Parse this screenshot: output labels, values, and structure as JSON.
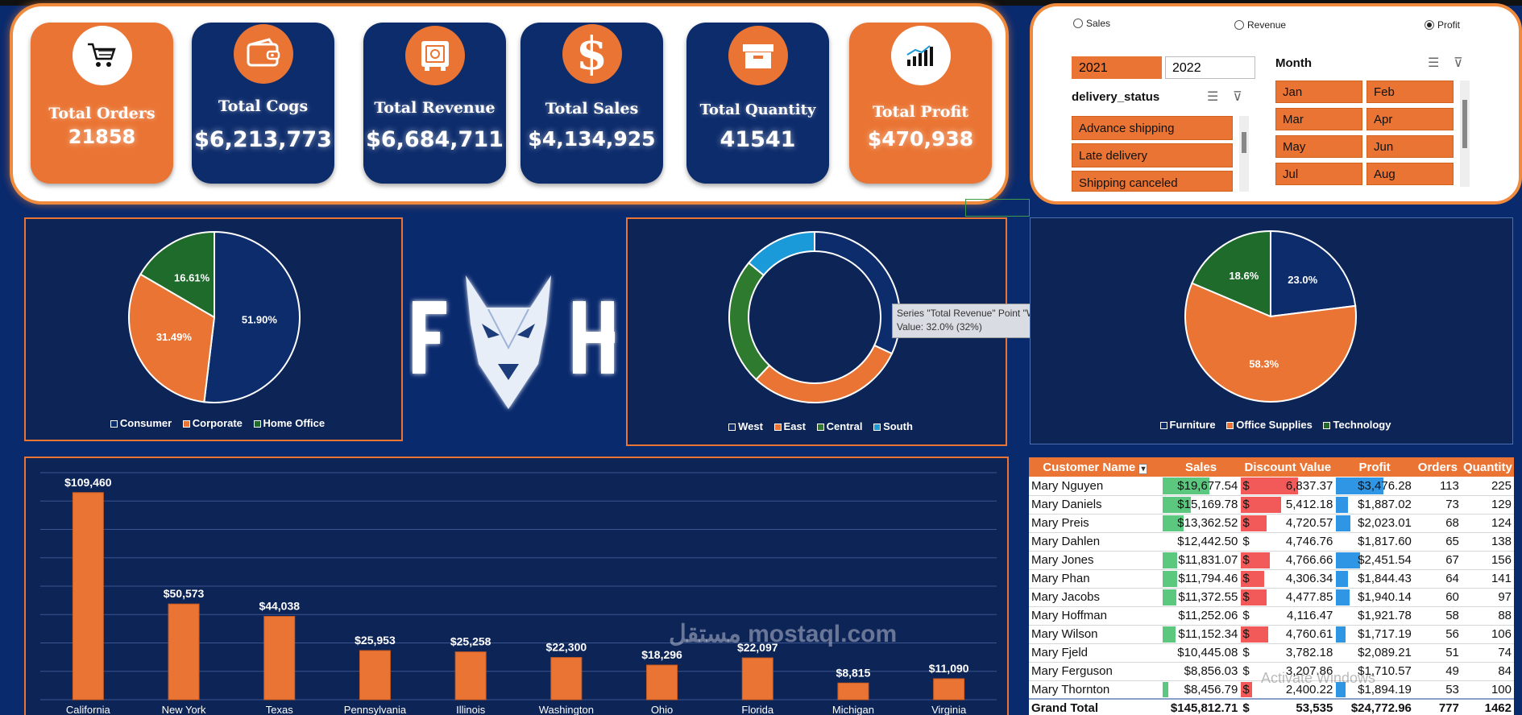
{
  "kpis": [
    {
      "title": "Total Orders",
      "value": "21858",
      "icon": "cart-icon"
    },
    {
      "title": "Total Cogs",
      "value": "$6,213,773",
      "icon": "wallet-icon"
    },
    {
      "title": "Total Revenue",
      "value": "$6,684,711",
      "icon": "safe-icon"
    },
    {
      "title": "Total Sales",
      "value": "$4,134,925",
      "icon": "dollar-icon"
    },
    {
      "title": "Total Quantity",
      "value": "41541",
      "icon": "box-icon"
    },
    {
      "title": "Total Profit",
      "value": "$470,938",
      "icon": "bar-chart-icon"
    }
  ],
  "measure_options": {
    "sales": "Sales",
    "revenue": "Revenue",
    "profit": "Profit",
    "selected": "Profit"
  },
  "years": [
    "2021",
    "2022"
  ],
  "delivery": {
    "title": "delivery_status",
    "items": [
      "Advance shipping",
      "Late delivery",
      "Shipping canceled"
    ]
  },
  "month": {
    "title": "Month",
    "items": [
      "Jan",
      "Feb",
      "Mar",
      "Apr",
      "May",
      "Jun",
      "Jul",
      "Aug"
    ]
  },
  "tooltip": {
    "line1": "Series \"Total Revenue\" Point \"West\"",
    "line2": "Value: 32.0% (32%)"
  },
  "logo_text": "FOX",
  "colors": {
    "orange": "#ea7433",
    "navy": "#0d2456",
    "green": "#1e6b2c",
    "sky": "#1a9ad8",
    "darknavy": "#0a2a6e"
  },
  "chart_data": [
    {
      "type": "pie",
      "categories": [
        "Consumer",
        "Corporate",
        "Home Office"
      ],
      "values": [
        51.9,
        31.49,
        16.61
      ],
      "labels": [
        "51.90%",
        "31.49%",
        "16.61%"
      ],
      "colors": [
        "#0d2c6c",
        "#ea7433",
        "#1e6b2c"
      ],
      "legend": "bottom"
    },
    {
      "type": "donut",
      "categories": [
        "West",
        "East",
        "Central",
        "South"
      ],
      "values": [
        32.0,
        30.0,
        24.0,
        14.0
      ],
      "colors": [
        "#0d2c6c",
        "#ea7433",
        "#2e7a2e",
        "#1a9ad8"
      ],
      "legend": "bottom"
    },
    {
      "type": "pie",
      "categories": [
        "Furniture",
        "Office Supplies",
        "Technology"
      ],
      "values": [
        23.0,
        58.3,
        18.6
      ],
      "labels": [
        "23.0%",
        "58.3%",
        "18.6%"
      ],
      "colors": [
        "#0d2c6c",
        "#ea7433",
        "#1e6b2c"
      ],
      "legend": "bottom"
    },
    {
      "type": "bar",
      "categories": [
        "California",
        "New York",
        "Texas",
        "Pennsylvania",
        "Illinois",
        "Washington",
        "Ohio",
        "Florida",
        "Michigan",
        "Virginia"
      ],
      "values": [
        109460,
        50573,
        44038,
        25953,
        25258,
        22300,
        18296,
        22097,
        8815,
        11090
      ],
      "labels": [
        "$109,460",
        "$50,573",
        "$44,038",
        "$25,953",
        "$25,258",
        "$22,300",
        "$18,296",
        "$22,097",
        "$8,815",
        "$11,090"
      ],
      "ylim": [
        0,
        120000
      ],
      "grid": true
    }
  ],
  "table": {
    "headers": [
      "Customer Name",
      "Sales",
      "Discount Value",
      "Profit",
      "Orders",
      "Quantity"
    ],
    "rows": [
      {
        "name": "Mary Nguyen",
        "sales": "$19,677.54",
        "sales_bar": 1.0,
        "disc": "6,837.37",
        "disc_bar": 1.0,
        "profit": "$3,476.28",
        "profit_bar": 1.0,
        "orders": "113",
        "qty": "225"
      },
      {
        "name": "Mary Daniels",
        "sales": "$15,169.78",
        "sales_bar": 0.6,
        "disc": "5,412.18",
        "disc_bar": 0.7,
        "profit": "$1,887.02",
        "profit_bar": 0.25,
        "orders": "73",
        "qty": "129"
      },
      {
        "name": "Mary Preis",
        "sales": "$13,362.52",
        "sales_bar": 0.45,
        "disc": "4,720.57",
        "disc_bar": 0.45,
        "profit": "$2,023.01",
        "profit_bar": 0.3,
        "orders": "68",
        "qty": "124"
      },
      {
        "name": "Mary Dahlen",
        "sales": "$12,442.50",
        "sales_bar": 0,
        "disc": "4,746.76",
        "disc_bar": 0,
        "profit": "$1,817.60",
        "profit_bar": 0,
        "orders": "65",
        "qty": "138"
      },
      {
        "name": "Mary Jones",
        "sales": "$11,831.07",
        "sales_bar": 0.32,
        "disc": "4,766.66",
        "disc_bar": 0.5,
        "profit": "$2,451.54",
        "profit_bar": 0.5,
        "orders": "67",
        "qty": "156"
      },
      {
        "name": "Mary Phan",
        "sales": "$11,794.46",
        "sales_bar": 0.32,
        "disc": "4,306.34",
        "disc_bar": 0.4,
        "profit": "$1,844.43",
        "profit_bar": 0.25,
        "orders": "64",
        "qty": "141"
      },
      {
        "name": "Mary Jacobs",
        "sales": "$11,372.55",
        "sales_bar": 0.3,
        "disc": "4,477.85",
        "disc_bar": 0.45,
        "profit": "$1,940.14",
        "profit_bar": 0.28,
        "orders": "60",
        "qty": "97"
      },
      {
        "name": "Mary Hoffman",
        "sales": "$11,252.06",
        "sales_bar": 0,
        "disc": "4,116.47",
        "disc_bar": 0,
        "profit": "$1,921.78",
        "profit_bar": 0,
        "orders": "58",
        "qty": "88"
      },
      {
        "name": "Mary Wilson",
        "sales": "$11,152.34",
        "sales_bar": 0.27,
        "disc": "4,760.61",
        "disc_bar": 0.47,
        "profit": "$1,717.19",
        "profit_bar": 0.2,
        "orders": "56",
        "qty": "106"
      },
      {
        "name": "Mary Fjeld",
        "sales": "$10,445.08",
        "sales_bar": 0,
        "disc": "3,782.18",
        "disc_bar": 0,
        "profit": "$2,089.21",
        "profit_bar": 0,
        "orders": "51",
        "qty": "74"
      },
      {
        "name": "Mary Ferguson",
        "sales": "$8,856.03",
        "sales_bar": 0,
        "disc": "3,207.86",
        "disc_bar": 0,
        "profit": "$1,710.57",
        "profit_bar": 0,
        "orders": "49",
        "qty": "84"
      },
      {
        "name": "Mary Thornton",
        "sales": "$8,456.79",
        "sales_bar": 0.12,
        "disc": "2,400.22",
        "disc_bar": 0.2,
        "profit": "$1,894.19",
        "profit_bar": 0.2,
        "orders": "53",
        "qty": "100"
      }
    ],
    "total": {
      "name": "Grand Total",
      "sales": "$145,812.71",
      "disc": "53,535",
      "profit": "$24,772.96",
      "orders": "777",
      "qty": "1462"
    }
  },
  "watermark": "مستقل mostaql.com",
  "activate_text": "Activate Windows"
}
